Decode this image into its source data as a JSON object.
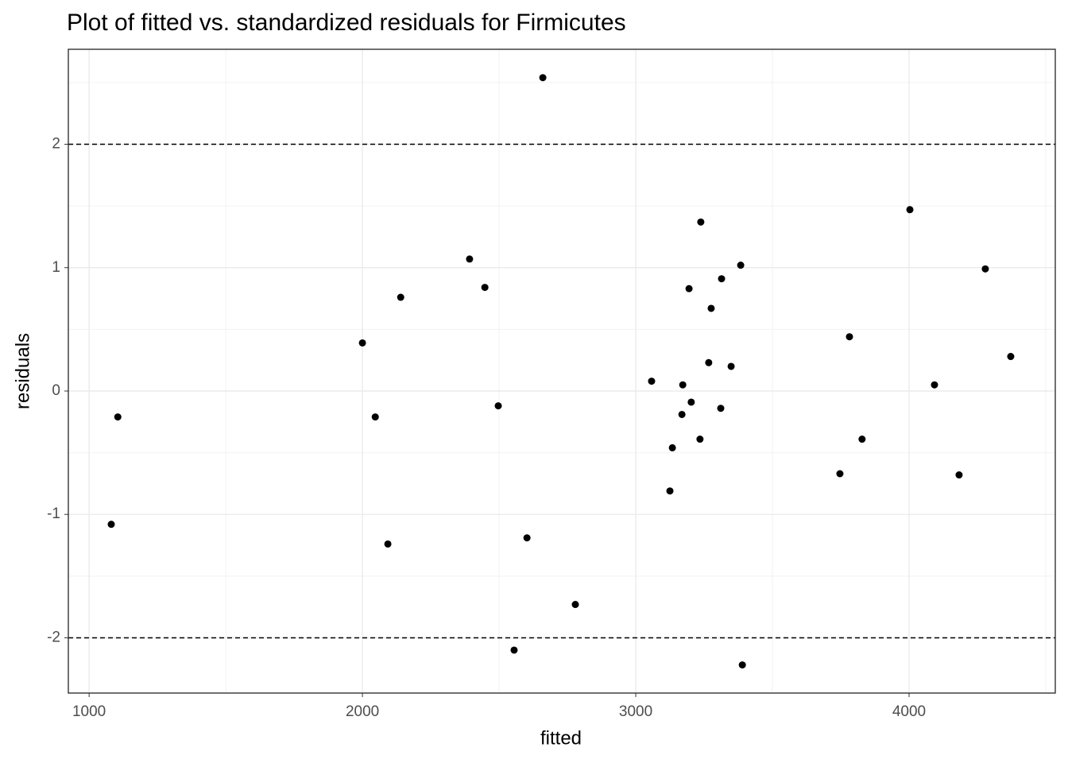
{
  "chart_data": {
    "type": "scatter",
    "title": "Plot of fitted vs. standardized residuals for Firmicutes",
    "x_label": "fitted",
    "y_label": "residuals",
    "color": "#000000",
    "grid": true,
    "hlines": [
      2,
      -2
    ],
    "xlim": [
      924,
      4535
    ],
    "ylim": [
      -2.448,
      2.77
    ],
    "xticks": [
      1000,
      2000,
      3000,
      4000
    ],
    "yticks": [
      -2,
      -1,
      0,
      1,
      2
    ],
    "x": [
      1105,
      1081,
      2000,
      2047,
      2093,
      2140,
      2392,
      2448,
      2497,
      2555,
      2602,
      2660,
      2779,
      3058,
      3125,
      3134,
      3169,
      3172,
      3195,
      3203,
      3235,
      3238,
      3267,
      3276,
      3311,
      3314,
      3349,
      3384,
      3390,
      3747,
      3782,
      3828,
      4003,
      4093,
      4183,
      4279,
      4372
    ],
    "values": [
      -0.21,
      -1.08,
      0.39,
      -0.21,
      -1.24,
      0.76,
      1.07,
      0.84,
      -0.12,
      -2.1,
      -1.19,
      2.54,
      -1.73,
      0.08,
      -0.81,
      -0.46,
      -0.19,
      0.05,
      0.83,
      -0.09,
      -0.39,
      1.37,
      0.23,
      0.67,
      -0.14,
      0.91,
      0.2,
      1.02,
      -2.22,
      -0.67,
      0.44,
      -0.39,
      1.47,
      0.05,
      -0.68,
      0.99,
      0.28
    ]
  }
}
